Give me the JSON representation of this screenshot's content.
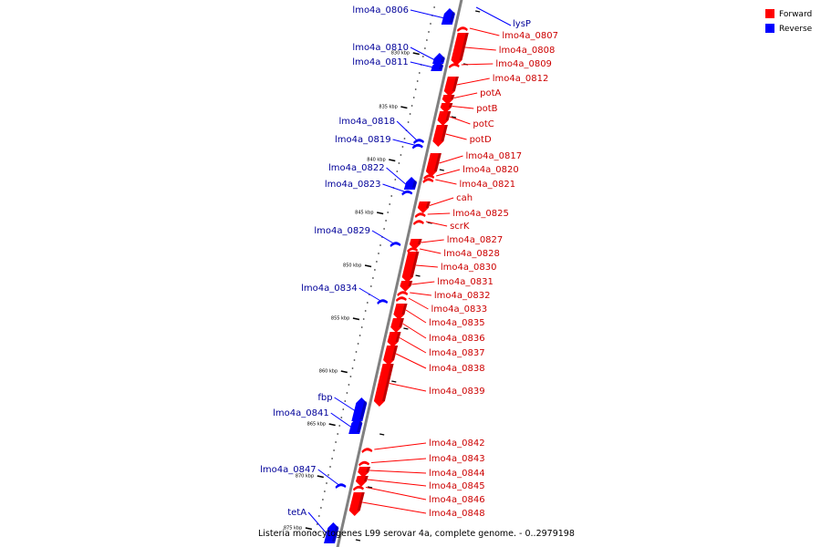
{
  "caption": "Listeria monocytogenes L99 serovar 4a, complete genome. - 0..2979198",
  "legend": [
    {
      "label": "Forward",
      "color": "#ff0000"
    },
    {
      "label": "Reverse",
      "color": "#0000ff"
    }
  ],
  "colors": {
    "forward": "#ff0000",
    "reverse": "#0000ff",
    "backbone": "#808080"
  },
  "ticks": [
    "830 kbp",
    "835 kbp",
    "840 kbp",
    "845 kbp",
    "850 kbp",
    "855 kbp",
    "860 kbp",
    "865 kbp",
    "870 kbp",
    "875 kbp"
  ],
  "genes": {
    "forward": [
      "lmo4a_0807",
      "lmo4a_0808",
      "lmo4a_0809",
      "lmo4a_0812",
      "potA",
      "potB",
      "potC",
      "potD",
      "lmo4a_0817",
      "lmo4a_0820",
      "lmo4a_0821",
      "cah",
      "lmo4a_0825",
      "scrK",
      "lmo4a_0827",
      "lmo4a_0828",
      "lmo4a_0830",
      "lmo4a_0831",
      "lmo4a_0832",
      "lmo4a_0833",
      "lmo4a_0835",
      "lmo4a_0836",
      "lmo4a_0837",
      "lmo4a_0838",
      "lmo4a_0839",
      "lmo4a_0842",
      "lmo4a_0843",
      "lmo4a_0844",
      "lmo4a_0845",
      "lmo4a_0846",
      "lmo4a_0848"
    ],
    "reverse": [
      "lysP",
      "lmo4a_0806",
      "lmo4a_0810",
      "lmo4a_0811",
      "lmo4a_0818",
      "lmo4a_0819",
      "lmo4a_0822",
      "lmo4a_0823",
      "lmo4a_0829",
      "lmo4a_0834",
      "fbp",
      "lmo4a_0841",
      "lmo4a_0847",
      "tetA"
    ]
  }
}
